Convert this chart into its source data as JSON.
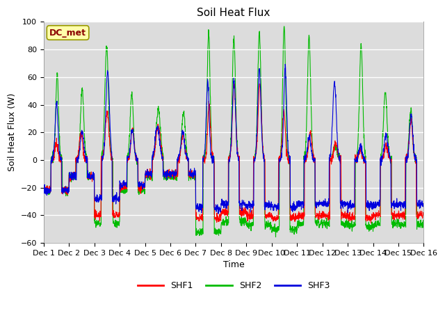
{
  "title": "Soil Heat Flux",
  "ylabel": "Soil Heat Flux (W)",
  "xlabel": "Time",
  "ylim": [
    -60,
    100
  ],
  "plot_bg_color": "#dcdcdc",
  "fig_bg_color": "#ffffff",
  "dc_met_label": "DC_met",
  "series": [
    "SHF1",
    "SHF2",
    "SHF3"
  ],
  "colors": [
    "#ff0000",
    "#00bb00",
    "#0000dd"
  ],
  "tick_labels": [
    "Dec 1",
    "Dec 2",
    "Dec 3",
    "Dec 4",
    "Dec 5",
    "Dec 6",
    "Dec 7",
    "Dec 8",
    "Dec 9",
    "Dec 10",
    "Dec 11",
    "Dec 12",
    "Dec 13",
    "Dec 14",
    "Dec 15",
    "Dec 16"
  ],
  "yticks": [
    -60,
    -40,
    -20,
    0,
    20,
    40,
    60,
    80,
    100
  ]
}
